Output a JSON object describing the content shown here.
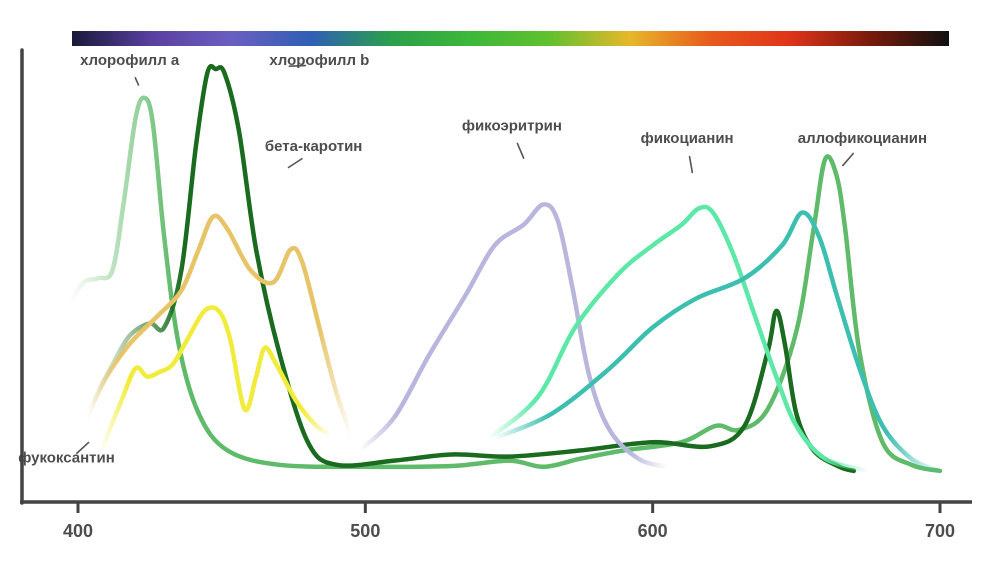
{
  "chart_data": {
    "type": "line",
    "title": "",
    "xlabel": "",
    "ylabel": "",
    "xlim": [
      390,
      712
    ],
    "ylim": [
      0,
      1
    ],
    "x_ticks": [
      "400",
      "500",
      "600",
      "700"
    ],
    "spectrum_bar": true,
    "spectrum_colors": [
      "#1a1a3a",
      "#5a3fa0",
      "#6a5fc0",
      "#2f5fb5",
      "#2aa04a",
      "#3cb83a",
      "#62c02e",
      "#e6b82a",
      "#e85a1c",
      "#e0341a",
      "#7a1a0c",
      "#111111"
    ],
    "series": [
      {
        "name": "хлорофилл a",
        "color": "#5fba6a",
        "fade_start": true,
        "points": [
          [
            397,
            0.42
          ],
          [
            402,
            0.47
          ],
          [
            407,
            0.48
          ],
          [
            412,
            0.5
          ],
          [
            416,
            0.67
          ],
          [
            420,
            0.87
          ],
          [
            423,
            0.92
          ],
          [
            426,
            0.86
          ],
          [
            430,
            0.58
          ],
          [
            435,
            0.32
          ],
          [
            442,
            0.15
          ],
          [
            452,
            0.06
          ],
          [
            470,
            0.025
          ],
          [
            500,
            0.02
          ],
          [
            530,
            0.022
          ],
          [
            550,
            0.035
          ],
          [
            562,
            0.02
          ],
          [
            575,
            0.04
          ],
          [
            590,
            0.06
          ],
          [
            610,
            0.08
          ],
          [
            622,
            0.12
          ],
          [
            630,
            0.11
          ],
          [
            640,
            0.16
          ],
          [
            650,
            0.35
          ],
          [
            656,
            0.6
          ],
          [
            660,
            0.77
          ],
          [
            664,
            0.73
          ],
          [
            667,
            0.6
          ],
          [
            672,
            0.3
          ],
          [
            680,
            0.08
          ],
          [
            690,
            0.025
          ],
          [
            700,
            0.01
          ]
        ]
      },
      {
        "name": "хлорофилл b",
        "color": "#1a6b1f",
        "fade_start": true,
        "points": [
          [
            405,
            0.18
          ],
          [
            412,
            0.27
          ],
          [
            418,
            0.34
          ],
          [
            425,
            0.37
          ],
          [
            430,
            0.36
          ],
          [
            436,
            0.5
          ],
          [
            441,
            0.8
          ],
          [
            445,
            0.98
          ],
          [
            448,
            0.99
          ],
          [
            451,
            0.98
          ],
          [
            456,
            0.84
          ],
          [
            462,
            0.55
          ],
          [
            470,
            0.3
          ],
          [
            480,
            0.08
          ],
          [
            490,
            0.025
          ],
          [
            510,
            0.035
          ],
          [
            530,
            0.05
          ],
          [
            550,
            0.045
          ],
          [
            575,
            0.06
          ],
          [
            600,
            0.08
          ],
          [
            620,
            0.07
          ],
          [
            632,
            0.12
          ],
          [
            640,
            0.3
          ],
          [
            643,
            0.4
          ],
          [
            646,
            0.32
          ],
          [
            650,
            0.15
          ],
          [
            656,
            0.06
          ],
          [
            665,
            0.02
          ],
          [
            670,
            0.01
          ]
        ]
      },
      {
        "name": "бета-каротин",
        "color": "#e8c468",
        "fade_start": true,
        "fade_end": true,
        "points": [
          [
            403,
            0.14
          ],
          [
            410,
            0.24
          ],
          [
            418,
            0.32
          ],
          [
            428,
            0.39
          ],
          [
            436,
            0.45
          ],
          [
            442,
            0.55
          ],
          [
            447,
            0.63
          ],
          [
            452,
            0.6
          ],
          [
            460,
            0.5
          ],
          [
            468,
            0.47
          ],
          [
            474,
            0.55
          ],
          [
            478,
            0.52
          ],
          [
            484,
            0.36
          ],
          [
            490,
            0.2
          ],
          [
            495,
            0.1
          ]
        ]
      },
      {
        "name": "фукоксантин",
        "color": "#f1ec3c",
        "fade_start": true,
        "fade_end": true,
        "points": [
          [
            408,
            0.06
          ],
          [
            415,
            0.18
          ],
          [
            420,
            0.26
          ],
          [
            424,
            0.24
          ],
          [
            428,
            0.25
          ],
          [
            433,
            0.27
          ],
          [
            438,
            0.33
          ],
          [
            444,
            0.4
          ],
          [
            449,
            0.4
          ],
          [
            453,
            0.33
          ],
          [
            458,
            0.16
          ],
          [
            462,
            0.24
          ],
          [
            465,
            0.31
          ],
          [
            469,
            0.27
          ],
          [
            476,
            0.18
          ],
          [
            483,
            0.12
          ],
          [
            488,
            0.1
          ]
        ]
      },
      {
        "name": "фикоэритрин",
        "color": "#b8b6dc",
        "fade_start": true,
        "fade_end": true,
        "points": [
          [
            498,
            0.06
          ],
          [
            510,
            0.14
          ],
          [
            522,
            0.29
          ],
          [
            535,
            0.44
          ],
          [
            545,
            0.56
          ],
          [
            555,
            0.61
          ],
          [
            562,
            0.66
          ],
          [
            567,
            0.62
          ],
          [
            572,
            0.46
          ],
          [
            578,
            0.24
          ],
          [
            585,
            0.11
          ],
          [
            595,
            0.04
          ],
          [
            605,
            0.02
          ]
        ]
      },
      {
        "name": "фикоцианин",
        "color": "#5ee8a8",
        "fade_start": true,
        "fade_end": true,
        "points": [
          [
            543,
            0.09
          ],
          [
            560,
            0.19
          ],
          [
            573,
            0.36
          ],
          [
            588,
            0.49
          ],
          [
            600,
            0.56
          ],
          [
            610,
            0.61
          ],
          [
            616,
            0.65
          ],
          [
            621,
            0.64
          ],
          [
            628,
            0.54
          ],
          [
            635,
            0.4
          ],
          [
            643,
            0.24
          ],
          [
            650,
            0.12
          ],
          [
            660,
            0.04
          ],
          [
            675,
            0.01
          ]
        ]
      },
      {
        "name": "аллофикоцианин",
        "color": "#3dbfb0",
        "fade_start": true,
        "fade_end": true,
        "points": [
          [
            545,
            0.09
          ],
          [
            565,
            0.15
          ],
          [
            585,
            0.26
          ],
          [
            600,
            0.36
          ],
          [
            615,
            0.43
          ],
          [
            632,
            0.48
          ],
          [
            645,
            0.56
          ],
          [
            652,
            0.64
          ],
          [
            658,
            0.58
          ],
          [
            664,
            0.44
          ],
          [
            672,
            0.26
          ],
          [
            680,
            0.12
          ],
          [
            690,
            0.04
          ],
          [
            700,
            0.01
          ]
        ]
      }
    ],
    "labels": [
      {
        "text": "хлорофилл a",
        "series": "хлорофилл a",
        "x": 418,
        "y": 1.0,
        "anchor": "middle"
      },
      {
        "text": "хлорофилл b",
        "series": "хлорофилл b",
        "x": 484,
        "y": 1.0,
        "anchor": "middle"
      },
      {
        "text": "бета-каротин",
        "series": "бета-каротин",
        "x": 482,
        "y": 0.79,
        "anchor": "middle"
      },
      {
        "text": "фукоксантин",
        "series": "фукоксантин",
        "x": 396,
        "y": 0.03,
        "anchor": "middle"
      },
      {
        "text": "фикоэритрин",
        "series": "фикоэритрин",
        "x": 551,
        "y": 0.84,
        "anchor": "middle"
      },
      {
        "text": "фикоцианин",
        "series": "фикоцианин",
        "x": 612,
        "y": 0.81,
        "anchor": "middle"
      },
      {
        "text": "аллофикоцианин",
        "series": "аллофикоцианин",
        "x": 673,
        "y": 0.81,
        "anchor": "middle"
      }
    ]
  }
}
